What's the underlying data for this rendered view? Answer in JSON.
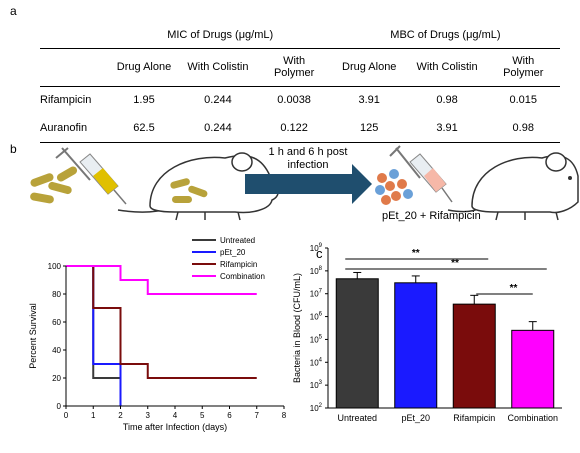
{
  "panel_a": {
    "letter": "a",
    "group_headers": [
      "MIC of Drugs (μg/mL)",
      "MBC of Drugs (μg/mL)"
    ],
    "col_headers": [
      "Drug Alone",
      "With Colistin",
      "With Polymer",
      "Drug Alone",
      "With Colistin",
      "With Polymer"
    ],
    "rows": [
      {
        "drug": "Rifampicin",
        "values": [
          "1.95",
          "0.244",
          "0.0038",
          "3.91",
          "0.98",
          "0.015"
        ]
      },
      {
        "drug": "Auranofin",
        "values": [
          "62.5",
          "0.244",
          "0.122",
          "125",
          "3.91",
          "0.98"
        ]
      }
    ]
  },
  "panel_b": {
    "letter": "b",
    "arrow_text": "1 h and 6 h post infection",
    "treatment_label": "pEt_20 + Rifampicin"
  },
  "panel_c": {
    "letter": "c"
  },
  "colors": {
    "untreated": "#3a3a3a",
    "pet20": "#1a1aff",
    "rifampicin": "#7a0c0c",
    "combination": "#ff00ff",
    "arrow": "#1f4e6e"
  },
  "chart_data": [
    {
      "type": "line",
      "step": true,
      "xlabel": "Time after Infection (days)",
      "ylabel": "Percent Survival",
      "xlim": [
        0,
        8
      ],
      "ylim": [
        0,
        100
      ],
      "xticks": [
        0,
        1,
        2,
        3,
        4,
        5,
        6,
        7,
        8
      ],
      "yticks": [
        0,
        20,
        40,
        60,
        80,
        100
      ],
      "legend_position": "top-right",
      "series": [
        {
          "name": "Untreated",
          "color": "#3a3a3a",
          "x": [
            0,
            1,
            2
          ],
          "y": [
            100,
            20,
            0
          ]
        },
        {
          "name": "pEt_20",
          "color": "#1a1aff",
          "x": [
            0,
            1,
            2
          ],
          "y": [
            100,
            30,
            0
          ]
        },
        {
          "name": "Rifampicin",
          "color": "#7a0c0c",
          "x": [
            0,
            1,
            2,
            3,
            7
          ],
          "y": [
            100,
            70,
            30,
            20,
            20
          ]
        },
        {
          "name": "Combination",
          "color": "#ff00ff",
          "x": [
            0,
            2,
            3,
            7
          ],
          "y": [
            100,
            90,
            80,
            80
          ]
        }
      ]
    },
    {
      "type": "bar",
      "log_scale": true,
      "ylabel": "Bacteria in Blood (CFU/mL)",
      "ylim": [
        100,
        1000000000
      ],
      "yticks_exp": [
        2,
        3,
        4,
        5,
        6,
        7,
        8,
        9
      ],
      "categories": [
        "Untreated",
        "pEt_20",
        "Rifampicin",
        "Combination"
      ],
      "values": [
        45000000,
        30000000,
        3500000,
        250000
      ],
      "error_upper": [
        85000000,
        60000000,
        8500000,
        600000
      ],
      "colors": [
        "#3a3a3a",
        "#1a1aff",
        "#7a0c0c",
        "#ff00ff"
      ],
      "significance": [
        {
          "from": 0,
          "to": 2,
          "label": "**"
        },
        {
          "from": 0,
          "to": 3,
          "label": "**"
        },
        {
          "from": 2,
          "to": 3,
          "label": "**"
        }
      ]
    }
  ]
}
